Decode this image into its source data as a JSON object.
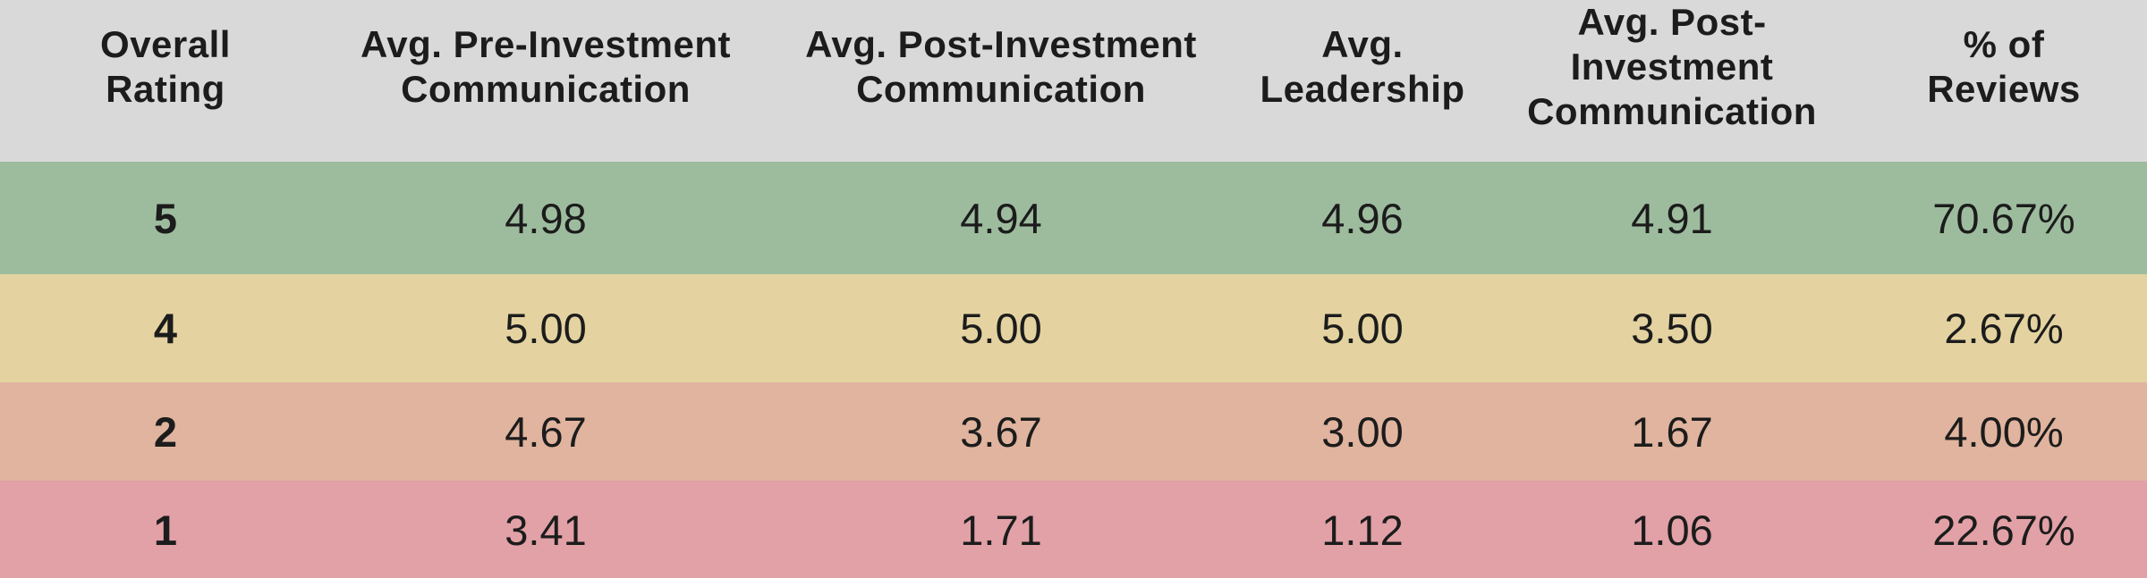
{
  "colors": {
    "header_bg": "#d9d9d9",
    "text": "#1c1c1c",
    "row_5": "#9dbc9e",
    "row_4": "#e4d3a1",
    "row_2": "#e0b49e",
    "row_1": "#e1a1a6"
  },
  "table": {
    "columns": [
      {
        "label": "Overall\nRating"
      },
      {
        "label": "Avg. Pre-Investment\nCommunication"
      },
      {
        "label": "Avg. Post-Investment\nCommunication"
      },
      {
        "label": "Avg.\nLeadership"
      },
      {
        "label": "Avg. Post-Investment\nCommunication"
      },
      {
        "label": "% of\nReviews"
      }
    ],
    "rows": [
      {
        "rating": "5",
        "values": [
          "4.98",
          "4.94",
          "4.96",
          "4.91",
          "70.67%"
        ],
        "color": "#9dbc9e"
      },
      {
        "rating": "4",
        "values": [
          "5.00",
          "5.00",
          "5.00",
          "3.50",
          "2.67%"
        ],
        "color": "#e4d3a1"
      },
      {
        "rating": "2",
        "values": [
          "4.67",
          "3.67",
          "3.00",
          "1.67",
          "4.00%"
        ],
        "color": "#e0b49e"
      },
      {
        "rating": "1",
        "values": [
          "3.41",
          "1.71",
          "1.12",
          "1.06",
          "22.67%"
        ],
        "color": "#e1a1a6"
      }
    ]
  },
  "chart_data": {
    "type": "table",
    "title": "",
    "columns": [
      "Overall Rating",
      "Avg. Pre-Investment Communication",
      "Avg. Post-Investment Communication",
      "Avg. Leadership",
      "Avg. Post-Investment Communication",
      "% of Reviews"
    ],
    "rows": [
      [
        5,
        4.98,
        4.94,
        4.96,
        4.91,
        "70.67%"
      ],
      [
        4,
        5.0,
        5.0,
        5.0,
        3.5,
        "2.67%"
      ],
      [
        2,
        4.67,
        3.67,
        3.0,
        1.67,
        "4.00%"
      ],
      [
        1,
        3.41,
        1.71,
        1.12,
        1.06,
        "22.67%"
      ]
    ],
    "row_colors": [
      "#9dbc9e",
      "#e4d3a1",
      "#e0b49e",
      "#e1a1a6"
    ],
    "header_color": "#d9d9d9"
  }
}
